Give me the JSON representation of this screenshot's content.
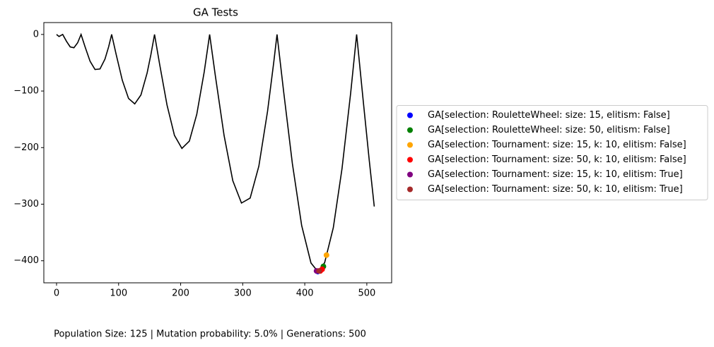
{
  "chart_data": {
    "type": "line",
    "title": "GA Tests",
    "caption": "Population Size: 125 | Mutation probability: 5.0% | Generations: 500",
    "xlim": [
      -20.5,
      540
    ],
    "ylim": [
      -439,
      21
    ],
    "xticks": [
      0,
      100,
      200,
      300,
      400,
      500
    ],
    "yticks": [
      0,
      {
        "value": -100,
        "label": "−100"
      },
      {
        "value": -200,
        "label": "−200"
      },
      {
        "value": -300,
        "label": "−300"
      },
      {
        "value": -400,
        "label": "−400"
      }
    ],
    "legend": "outside right",
    "series": [
      {
        "type": "line",
        "color": "#000000",
        "x": [
          0,
          4,
          9.9,
          16,
          22,
          28,
          34,
          39.5,
          46,
          54,
          62,
          70,
          78,
          84,
          88.8,
          96,
          106,
          116,
          126,
          136,
          146,
          152,
          157.9,
          166,
          178,
          190,
          202,
          214,
          226,
          238,
          246.7,
          256,
          270,
          284,
          298,
          312,
          326,
          340,
          350,
          355.3,
          366,
          380,
          395,
          410,
          421,
          432,
          446,
          460,
          474,
          483.6,
          494,
          504,
          512
        ],
        "values": [
          0,
          -3.6,
          0,
          -12.1,
          -22.0,
          -23.5,
          -14.7,
          0,
          -22.0,
          -47.3,
          -62.0,
          -61.0,
          -43.6,
          -21.6,
          0,
          -35.0,
          -81.1,
          -113.1,
          -122.7,
          -106.9,
          -67.9,
          -35.9,
          0,
          -51.9,
          -124.6,
          -178.4,
          -201.4,
          -188.5,
          -141.0,
          -65.9,
          0,
          -73.7,
          -178.7,
          -258.4,
          -298.0,
          -289.2,
          -232.8,
          -136.0,
          -49.4,
          0,
          -101.4,
          -228.0,
          -337.7,
          -403.9,
          -418.9,
          -403.5,
          -341.6,
          -237.4,
          -103.3,
          0,
          -115.1,
          -223.3,
          -304.1
        ]
      },
      {
        "type": "scatter",
        "name": "GA[selection: RouletteWheel: size: 15, elitism: False]",
        "color": "#0000ff",
        "x": [
          421
        ],
        "values": [
          -419
        ]
      },
      {
        "type": "scatter",
        "name": "GA[selection: RouletteWheel: size: 50, elitism: False]",
        "color": "#008000",
        "x": [
          430
        ],
        "values": [
          -410
        ]
      },
      {
        "type": "scatter",
        "name": "GA[selection: Tournament: size: 15, k: 10, elitism: False]",
        "color": "#ffa500",
        "x": [
          435
        ],
        "values": [
          -390
        ]
      },
      {
        "type": "scatter",
        "name": "GA[selection: Tournament: size: 50, k: 10, elitism: False]",
        "color": "#ff0000",
        "x": [
          425,
          428
        ],
        "values": [
          -418,
          -415
        ]
      },
      {
        "type": "scatter",
        "name": "GA[selection: Tournament: size: 15, k: 10, elitism: True]",
        "color": "#800080",
        "x": [
          419
        ],
        "values": [
          -418
        ]
      },
      {
        "type": "scatter",
        "name": "GA[selection: Tournament: size: 50, k: 10, elitism: True]",
        "color": "#a52a2a",
        "x": [
          423
        ],
        "values": [
          -418
        ]
      }
    ]
  }
}
